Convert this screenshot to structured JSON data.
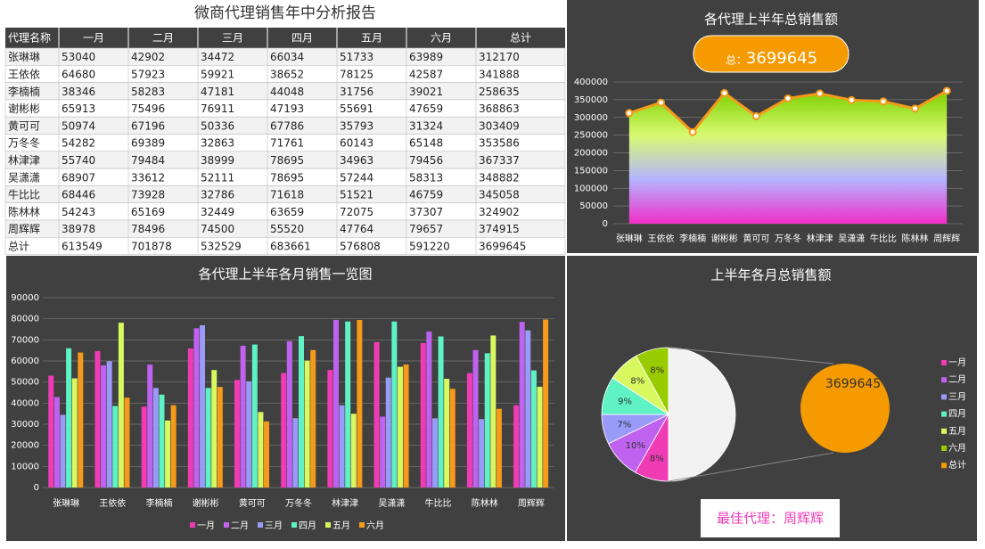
{
  "title": "微商代理销售年中分析报告",
  "table": {
    "header": [
      "代理名称",
      "一月",
      "二月",
      "三月",
      "四月",
      "五月",
      "六月",
      "总计"
    ],
    "rows": [
      [
        "张琳琳",
        53040,
        42902,
        34472,
        66034,
        51733,
        63989,
        312170
      ],
      [
        "王依依",
        64680,
        57923,
        59921,
        38652,
        78125,
        42587,
        341888
      ],
      [
        "李楠楠",
        38346,
        58283,
        47181,
        44048,
        31756,
        39021,
        258635
      ],
      [
        "谢彬彬",
        65913,
        75496,
        76911,
        47193,
        55691,
        47659,
        368863
      ],
      [
        "黄可可",
        50974,
        67196,
        50336,
        67786,
        35793,
        31324,
        303409
      ],
      [
        "万冬冬",
        54282,
        69389,
        32863,
        71761,
        60143,
        65148,
        353586
      ],
      [
        "林津津",
        55740,
        79484,
        38999,
        78695,
        34963,
        79456,
        367337
      ],
      [
        "吴潇潇",
        68907,
        33612,
        52111,
        78695,
        57244,
        58313,
        348882
      ],
      [
        "牛比比",
        68446,
        73928,
        32786,
        71618,
        51521,
        46759,
        345058
      ],
      [
        "陈林林",
        54243,
        65169,
        32449,
        63659,
        72075,
        37307,
        324902
      ],
      [
        "周辉辉",
        38978,
        78496,
        74500,
        55520,
        47764,
        79657,
        374915
      ],
      [
        "总计",
        613549,
        701878,
        532529,
        683661,
        576808,
        591220,
        3699645
      ]
    ]
  },
  "best_agent": "最佳代理：周辉辉",
  "chart_data": [
    {
      "type": "area",
      "title": "各代理上半年总销售额",
      "annotation": "总：",
      "total": 3699645,
      "categories": [
        "张琳琳",
        "王依依",
        "李楠楠",
        "谢彬彬",
        "黄可可",
        "万冬冬",
        "林津津",
        "吴潇潇",
        "牛比比",
        "陈林林",
        "周辉辉"
      ],
      "values": [
        312170,
        341888,
        258635,
        368863,
        303409,
        353586,
        367337,
        348882,
        345058,
        324902,
        374915
      ],
      "color": "#f59a1a",
      "gradient": [
        "#7ccf00",
        "#d8fa70",
        "#b4b4ff",
        "#f02ec8"
      ],
      "ylim": [
        0,
        400000
      ],
      "yticks": [
        0,
        50000,
        100000,
        150000,
        200000,
        250000,
        300000,
        350000,
        400000
      ],
      "grid": true
    },
    {
      "type": "bar",
      "title": "各代理上半年各月销售一览图",
      "categories": [
        "张琳琳",
        "王依依",
        "李楠楠",
        "谢彬彬",
        "黄可可",
        "万冬冬",
        "林津津",
        "吴潇潇",
        "牛比比",
        "陈林林",
        "周辉辉"
      ],
      "series": [
        {
          "name": "一月",
          "color": "#f03cb4",
          "values": [
            53040,
            64680,
            38346,
            65913,
            50974,
            54282,
            55740,
            68907,
            68446,
            54243,
            38978
          ]
        },
        {
          "name": "二月",
          "color": "#c062f0",
          "values": [
            42902,
            57923,
            58283,
            75496,
            67196,
            69389,
            79484,
            33612,
            73928,
            65169,
            78496
          ]
        },
        {
          "name": "三月",
          "color": "#9a9af8",
          "values": [
            34472,
            59921,
            47181,
            76911,
            50336,
            32863,
            38999,
            52111,
            32786,
            32449,
            74500
          ]
        },
        {
          "name": "四月",
          "color": "#5ef2c4",
          "values": [
            66034,
            38652,
            44048,
            47193,
            67786,
            71761,
            78695,
            78695,
            71618,
            63659,
            55520
          ]
        },
        {
          "name": "五月",
          "color": "#d8f860",
          "values": [
            51733,
            78125,
            31756,
            55691,
            35793,
            60143,
            34963,
            57244,
            51521,
            72075,
            47764
          ]
        },
        {
          "name": "六月",
          "color": "#f59a1a",
          "values": [
            63989,
            42587,
            39021,
            47659,
            31324,
            65148,
            79456,
            58313,
            46759,
            37307,
            79657
          ]
        }
      ],
      "ylim": [
        0,
        90000
      ],
      "yticks": [
        0,
        10000,
        20000,
        30000,
        40000,
        50000,
        60000,
        70000,
        80000,
        90000
      ],
      "grid": true,
      "legend": "bottom"
    },
    {
      "type": "pie",
      "title": "上半年各月总销售额",
      "categories": [
        "一月",
        "二月",
        "三月",
        "四月",
        "五月",
        "六月",
        "总计"
      ],
      "values": [
        8.3,
        9.5,
        7.2,
        9.2,
        7.8,
        8.0,
        50
      ],
      "value_labels": [
        "8%",
        "10%",
        "7%",
        "9%",
        "8%",
        "8%",
        null
      ],
      "colors": [
        "#f03cb4",
        "#c062f0",
        "#9a9af8",
        "#5ef2c4",
        "#d8f860",
        "#99cc00",
        "#f59a00"
      ],
      "secondary_value": 3699645,
      "legend": "right"
    }
  ]
}
